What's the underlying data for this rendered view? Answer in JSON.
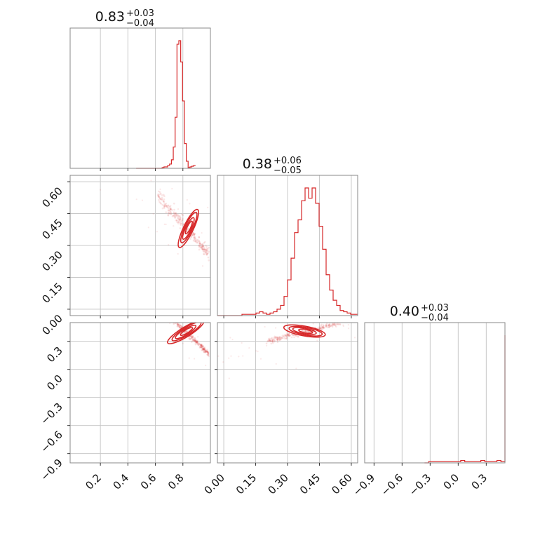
{
  "chart_data": {
    "type": "corner",
    "color": "#d62728",
    "grid": true,
    "params": [
      {
        "title": {
          "median": "0.83",
          "plus": "+0.03",
          "minus": "−0.04"
        },
        "range": [
          -0.02,
          1.0
        ],
        "ticks": [
          0.2,
          0.4,
          0.6,
          0.8
        ],
        "tick_labels": [
          "0.2",
          "0.4",
          "0.6",
          "0.8"
        ],
        "hist": {
          "edges_start": 0.46,
          "bin_width": 0.0135,
          "counts": [
            0,
            0,
            0,
            0,
            0,
            0,
            0,
            0,
            0,
            0,
            0,
            0,
            0,
            0,
            1,
            2,
            2,
            4,
            6,
            12,
            30,
            72,
            175,
            180,
            150,
            95,
            35,
            10,
            1,
            2,
            3,
            4
          ]
        }
      },
      {
        "title": {
          "median": "0.38",
          "plus": "+0.06",
          "minus": "−0.05"
        },
        "range": [
          -0.03,
          0.63
        ],
        "ticks": [
          0.0,
          0.15,
          0.3,
          0.45,
          0.6
        ],
        "tick_labels": [
          "0.00",
          "0.15",
          "0.30",
          "0.45",
          "0.60"
        ],
        "hist": {
          "edges_start": -0.03,
          "bin_width": 0.0165,
          "counts": [
            0,
            0,
            0,
            0,
            0,
            0,
            0,
            1,
            1,
            1,
            1,
            2,
            3,
            2,
            1,
            2,
            3,
            5,
            8,
            15,
            28,
            45,
            65,
            75,
            90,
            100,
            92,
            100,
            88,
            70,
            52,
            32,
            20,
            12,
            8,
            4,
            3,
            2,
            1,
            1
          ]
        }
      },
      {
        "title": {
          "median": "0.40",
          "plus": "+0.03",
          "minus": "−0.04"
        },
        "range": [
          -1.0,
          0.5
        ],
        "ticks": [
          -0.9,
          -0.6,
          -0.3,
          0.0,
          0.3
        ],
        "tick_labels": [
          "−0.9",
          "−0.6",
          "−0.3",
          "0.0",
          "0.3"
        ],
        "hist": {
          "edges_start": -0.36,
          "bin_width": 0.043,
          "counts": [
            0,
            1,
            1,
            1,
            1,
            1,
            1,
            1,
            1,
            2,
            1,
            1,
            1,
            1,
            2,
            1,
            1,
            1,
            2,
            1,
            2,
            3,
            4,
            10,
            28,
            65,
            108,
            100,
            60,
            12
          ]
        }
      }
    ],
    "pairs": [
      {
        "row": 1,
        "col": 0,
        "ridge": {
          "slope": -0.75,
          "intercept": 1.0,
          "x_range": [
            0.62,
            0.99
          ]
        },
        "contour_center": [
          0.84,
          0.38
        ],
        "contour_angle": -1.12
      },
      {
        "row": 2,
        "col": 0,
        "ridge": {
          "slope": -1.4,
          "intercept": 1.55,
          "x_range": [
            0.7,
            0.99
          ]
        },
        "contour_center": [
          0.82,
          0.4
        ],
        "contour_angle": -0.55
      },
      {
        "row": 2,
        "col": 1,
        "ridge": {
          "slope": 0.55,
          "intercept": 0.19,
          "x_range": [
            0.2,
            0.55
          ]
        },
        "contour_center": [
          0.38,
          0.41
        ],
        "contour_angle": 0.18
      }
    ]
  }
}
